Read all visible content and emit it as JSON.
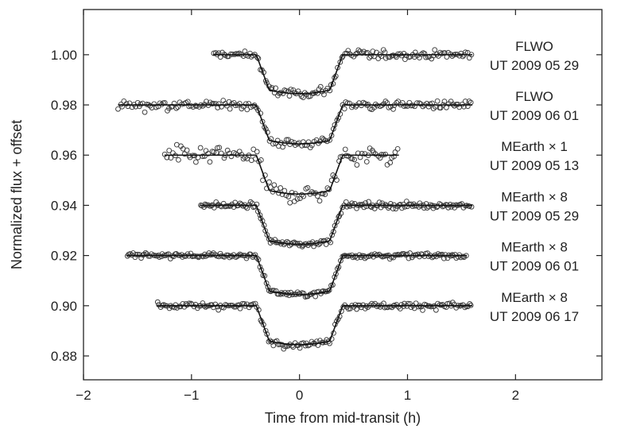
{
  "chart_data": {
    "type": "scatter",
    "xlabel": "Time from mid-transit (h)",
    "ylabel": "Normalized flux + offset",
    "xlim": [
      -2,
      2.8
    ],
    "ylim": [
      0.8705,
      1.018
    ],
    "xticks": [
      -2,
      -1,
      0,
      1,
      2
    ],
    "xtick_labels": [
      "−2",
      "−1",
      "0",
      "1",
      "2"
    ],
    "yticks": [
      0.88,
      0.9,
      0.92,
      0.94,
      0.96,
      0.98,
      1.0
    ],
    "ytick_labels": [
      "0.88",
      "0.90",
      "0.92",
      "0.94",
      "0.96",
      "0.98",
      "1.00"
    ],
    "grid": false,
    "transit": {
      "ingress_start": -0.4,
      "ingress_end": -0.28,
      "egress_start": 0.28,
      "egress_end": 0.4
    },
    "series": [
      {
        "label_line1": "FLWO",
        "label_line2": "UT 2009 05 29",
        "baseline": 1.0,
        "depth": 0.0155,
        "x_start": -0.8,
        "x_end": 1.6,
        "scatter": 0.0015,
        "n_points": 150
      },
      {
        "label_line1": "FLWO",
        "label_line2": "UT 2009 06 01",
        "baseline": 0.98,
        "depth": 0.0155,
        "x_start": -1.68,
        "x_end": 1.6,
        "scatter": 0.0016,
        "n_points": 190
      },
      {
        "label_line1": "MEarth × 1",
        "label_line2": "UT 2009 05 13",
        "baseline": 0.96,
        "depth": 0.0155,
        "x_start": -1.25,
        "x_end": 0.92,
        "scatter": 0.003,
        "n_points": 120
      },
      {
        "label_line1": "MEarth × 8",
        "label_line2": "UT 2009 05 29",
        "baseline": 0.94,
        "depth": 0.0155,
        "x_start": -0.92,
        "x_end": 1.6,
        "scatter": 0.001,
        "n_points": 180
      },
      {
        "label_line1": "MEarth × 8",
        "label_line2": "UT 2009 06 01",
        "baseline": 0.92,
        "depth": 0.0155,
        "x_start": -1.6,
        "x_end": 1.55,
        "scatter": 0.0009,
        "n_points": 220
      },
      {
        "label_line1": "MEarth × 8",
        "label_line2": "UT 2009 06 17",
        "baseline": 0.9,
        "depth": 0.0155,
        "x_start": -1.32,
        "x_end": 1.6,
        "scatter": 0.0011,
        "n_points": 190
      }
    ]
  }
}
